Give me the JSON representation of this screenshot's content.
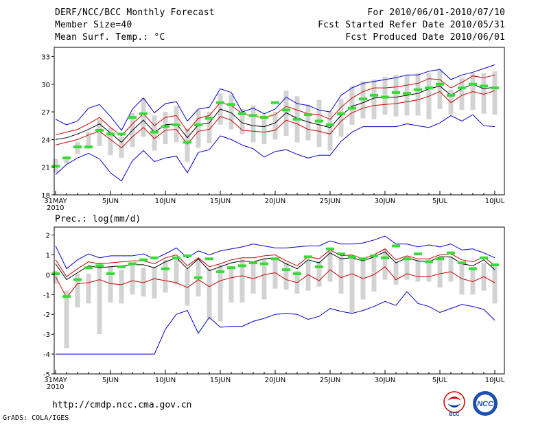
{
  "header": {
    "title": "DERF/NCC/BCC Monthly Forecast",
    "member_size": "Member Size=40",
    "variable": "Mean Surf. Temp.: °C",
    "forecast_period": "For 2010/06/01-2010/07/10",
    "start_date": "Fcst Started Refer Date 2010/05/31",
    "produced_date": "Fcst Produced Date 2010/06/01"
  },
  "footer": {
    "url": "http://cmdp.ncc.cma.gov.cn",
    "credit": "GrADS: COLA/IGES",
    "logo_bcc": "BCC",
    "logo_ncc": "NCC"
  },
  "colors": {
    "range": "#0000cc",
    "spread": "#cc0000",
    "mean": "#000000",
    "box": "#d3d3d3",
    "obs": "#33dd33"
  },
  "chart_data": [
    {
      "type": "line",
      "title": "Mean Surf. Temp.: °C",
      "ylim": [
        18,
        34
      ],
      "yticks": [
        18,
        21,
        24,
        27,
        30,
        33
      ],
      "xlim": [
        0,
        40
      ],
      "x_tick_positions": [
        0,
        5,
        10,
        15,
        20,
        25,
        30,
        35,
        40
      ],
      "x_tick_labels": [
        "31MAY",
        "5JUN",
        "10JUN",
        "15JUN",
        "20JUN",
        "25JUN",
        "30JUN",
        "5JUL",
        "10JUL"
      ],
      "x_sublabel": "2010",
      "series": [
        {
          "name": "max",
          "values": [
            26.2,
            25.6,
            26.0,
            27.4,
            27.8,
            26.5,
            25.0,
            27.3,
            28.5,
            26.9,
            27.9,
            28.1,
            26.0,
            27.3,
            27.5,
            29.5,
            29.1,
            27.0,
            27.4,
            26.8,
            27.3,
            28.6,
            27.9,
            27.7,
            27.2,
            27.0,
            28.8,
            29.6,
            30.1,
            30.3,
            30.5,
            30.7,
            31.0,
            31.0,
            31.4,
            31.6,
            30.5,
            31.0,
            31.3,
            31.7,
            32.1
          ]
        },
        {
          "name": "upper",
          "values": [
            24.5,
            24.8,
            25.1,
            25.7,
            26.4,
            25.3,
            24.4,
            25.7,
            26.8,
            25.5,
            26.4,
            26.6,
            24.9,
            26.3,
            26.6,
            28.0,
            27.7,
            26.8,
            26.5,
            26.4,
            26.7,
            27.6,
            27.2,
            26.8,
            26.7,
            26.2,
            27.5,
            28.5,
            29.2,
            29.6,
            29.6,
            29.7,
            29.9,
            30.1,
            30.6,
            30.5,
            29.6,
            30.2,
            30.9,
            30.7,
            31.0
          ]
        },
        {
          "name": "mean",
          "values": [
            24.0,
            24.2,
            24.6,
            25.1,
            25.7,
            24.7,
            23.7,
            25.0,
            26.1,
            24.8,
            25.6,
            25.7,
            24.2,
            25.6,
            25.8,
            27.3,
            26.9,
            25.8,
            25.5,
            25.4,
            25.8,
            26.9,
            26.3,
            25.9,
            25.6,
            25.3,
            26.6,
            27.6,
            28.0,
            28.5,
            28.6,
            28.6,
            28.8,
            29.0,
            29.5,
            29.8,
            28.8,
            29.5,
            30.0,
            29.5,
            29.7
          ]
        },
        {
          "name": "lower",
          "values": [
            23.4,
            23.7,
            24.0,
            24.5,
            24.9,
            24.0,
            23.1,
            24.3,
            25.3,
            24.1,
            25.0,
            25.1,
            23.5,
            24.9,
            25.1,
            26.5,
            26.1,
            25.0,
            24.9,
            24.8,
            25.0,
            26.1,
            25.7,
            25.1,
            24.9,
            24.6,
            26.0,
            26.9,
            27.4,
            27.7,
            27.8,
            27.9,
            28.1,
            28.3,
            28.7,
            29.2,
            28.0,
            28.8,
            29.2,
            28.9,
            29.3
          ]
        },
        {
          "name": "min",
          "values": [
            20.2,
            21.3,
            22.0,
            22.5,
            21.9,
            20.4,
            19.5,
            21.7,
            22.8,
            21.6,
            22.0,
            22.2,
            20.4,
            22.6,
            22.9,
            24.4,
            24.0,
            23.4,
            23.0,
            22.1,
            22.7,
            22.9,
            22.4,
            22.0,
            22.3,
            22.3,
            23.8,
            24.8,
            25.4,
            25.4,
            25.4,
            25.4,
            25.7,
            25.5,
            25.3,
            25.8,
            26.6,
            26.0,
            26.7,
            25.5,
            25.4
          ]
        },
        {
          "name": "box_low",
          "values": [
            20.4,
            21.4,
            22.4,
            23.0,
            23.3,
            22.3,
            22.0,
            23.2,
            24.3,
            22.8,
            23.5,
            23.7,
            21.6,
            23.1,
            23.6,
            25.6,
            25.1,
            24.6,
            23.7,
            23.5,
            24.0,
            24.4,
            23.7,
            23.9,
            23.2,
            22.8,
            24.3,
            25.6,
            26.3,
            26.2,
            26.7,
            26.5,
            26.6,
            26.6,
            26.2,
            27.3,
            26.7,
            27.2,
            27.2,
            26.8,
            26.7
          ]
        },
        {
          "name": "box_high",
          "values": [
            21.9,
            22.2,
            23.7,
            24.8,
            26.2,
            25.3,
            24.3,
            26.9,
            28.5,
            26.6,
            27.0,
            27.6,
            25.2,
            27.2,
            27.0,
            29.0,
            28.9,
            27.3,
            27.7,
            26.7,
            27.0,
            29.3,
            28.7,
            27.8,
            28.3,
            27.0,
            28.4,
            29.8,
            30.3,
            30.5,
            30.8,
            31.0,
            31.0,
            31.2,
            31.2,
            31.5,
            29.4,
            30.7,
            31.2,
            31.2,
            31.4
          ]
        },
        {
          "name": "observed",
          "values": [
            21.1,
            22.0,
            23.2,
            23.2,
            25.0,
            24.6,
            24.6,
            26.4,
            26.8,
            24.8,
            25.4,
            25.6,
            23.7,
            25.6,
            26.3,
            28.0,
            27.8,
            26.8,
            26.6,
            26.4,
            28.0,
            27.2,
            26.2,
            26.7,
            26.0,
            25.6,
            26.8,
            27.4,
            28.4,
            28.8,
            28.6,
            29.1,
            29.0,
            29.4,
            29.6,
            30.0,
            28.8,
            29.6,
            30.0,
            29.8,
            29.6
          ]
        }
      ]
    },
    {
      "type": "line",
      "title": "Prec.: log(mm/d)",
      "ylim": [
        -5,
        2.4
      ],
      "yticks": [
        -5,
        -4,
        -3,
        -2,
        -1,
        0,
        1,
        2
      ],
      "xlim": [
        0,
        40
      ],
      "x_tick_positions": [
        0,
        5,
        10,
        15,
        20,
        25,
        30,
        35,
        40
      ],
      "x_tick_labels": [
        "31MAY",
        "5JUN",
        "10JUN",
        "15JUN",
        "20JUN",
        "25JUN",
        "30JUN",
        "5JUL",
        "10JUL"
      ],
      "x_sublabel": "2010",
      "series": [
        {
          "name": "max",
          "values": [
            1.45,
            0.3,
            0.75,
            1.05,
            0.85,
            0.95,
            0.95,
            0.95,
            1.05,
            0.8,
            1.05,
            1.35,
            0.85,
            1.2,
            1.0,
            1.2,
            1.3,
            1.4,
            1.55,
            1.45,
            1.35,
            1.35,
            1.4,
            1.45,
            1.45,
            1.7,
            1.55,
            1.55,
            1.6,
            1.75,
            1.95,
            1.55,
            1.55,
            1.4,
            1.5,
            1.4,
            1.55,
            1.25,
            1.3,
            1.1,
            0.85
          ]
        },
        {
          "name": "upper",
          "values": [
            0.75,
            -0.1,
            0.3,
            0.65,
            0.55,
            0.6,
            0.65,
            0.7,
            0.7,
            0.55,
            0.85,
            1.0,
            0.45,
            0.85,
            0.4,
            0.55,
            0.75,
            0.85,
            0.85,
            0.95,
            1.0,
            0.7,
            0.45,
            0.9,
            0.8,
            1.25,
            0.95,
            1.0,
            0.8,
            1.0,
            1.3,
            0.75,
            0.95,
            0.8,
            0.8,
            1.0,
            1.05,
            0.75,
            0.65,
            0.9,
            0.45
          ]
        },
        {
          "name": "mean",
          "values": [
            0.55,
            -0.25,
            0.1,
            0.45,
            0.35,
            0.4,
            0.45,
            0.5,
            0.5,
            0.35,
            0.65,
            0.85,
            0.3,
            0.8,
            0.2,
            0.4,
            0.6,
            0.7,
            0.65,
            0.8,
            0.85,
            0.55,
            0.3,
            0.75,
            0.6,
            1.1,
            0.8,
            0.85,
            0.7,
            0.9,
            1.15,
            0.6,
            0.85,
            0.7,
            0.65,
            0.9,
            0.9,
            0.55,
            0.45,
            0.75,
            0.25
          ]
        },
        {
          "name": "lower",
          "values": [
            -0.1,
            -1.15,
            -0.45,
            -0.4,
            -0.25,
            -0.45,
            -0.5,
            -0.3,
            -0.4,
            -0.2,
            -0.3,
            -0.4,
            -0.65,
            -0.25,
            -0.6,
            -0.3,
            -0.15,
            -0.05,
            -0.2,
            0.0,
            0.1,
            -0.25,
            -0.4,
            0.0,
            -0.3,
            0.25,
            -0.15,
            0.05,
            -0.2,
            0.0,
            0.4,
            -0.25,
            0.05,
            -0.1,
            -0.1,
            0.05,
            0.15,
            -0.2,
            -0.35,
            -0.1,
            -0.4
          ]
        },
        {
          "name": "min",
          "values": [
            -4.0,
            -4.0,
            -4.0,
            -4.0,
            -4.0,
            -4.0,
            -4.0,
            -4.0,
            -4.0,
            -4.0,
            -2.75,
            -2.0,
            -1.8,
            -2.95,
            -2.15,
            -2.65,
            -2.6,
            -2.6,
            -2.35,
            -2.2,
            -2.0,
            -1.95,
            -2.0,
            -2.25,
            -2.1,
            -1.7,
            -1.85,
            -1.95,
            -1.8,
            -1.6,
            -1.35,
            -1.55,
            -0.85,
            -1.45,
            -1.6,
            -1.9,
            -1.7,
            -1.5,
            -1.6,
            -1.75,
            -2.3
          ]
        },
        {
          "name": "box_low",
          "values": [
            -0.45,
            -3.7,
            -1.65,
            -1.45,
            -3.0,
            -1.4,
            -1.45,
            -1.0,
            -1.1,
            -1.2,
            -0.9,
            -0.5,
            -1.55,
            -1.1,
            -2.25,
            -2.35,
            -1.4,
            -1.4,
            -0.95,
            -1.25,
            -0.7,
            -0.75,
            -0.95,
            -0.8,
            -0.6,
            -0.35,
            -0.95,
            -1.95,
            -1.25,
            -0.85,
            -0.25,
            -0.5,
            -0.25,
            -0.35,
            -0.35,
            -0.65,
            -0.35,
            -1.0,
            -1.0,
            -0.8,
            -1.45
          ]
        },
        {
          "name": "box_high",
          "values": [
            0.2,
            -0.8,
            0.05,
            0.05,
            0.6,
            0.4,
            0.25,
            0.55,
            0.35,
            0.4,
            0.75,
            0.9,
            0.3,
            0.8,
            0.3,
            0.5,
            0.45,
            0.8,
            0.7,
            0.8,
            0.8,
            0.6,
            0.2,
            0.7,
            0.7,
            1.2,
            0.9,
            0.9,
            0.7,
            0.95,
            1.3,
            0.6,
            0.95,
            0.75,
            0.8,
            0.8,
            0.9,
            0.55,
            0.4,
            0.6,
            0.5
          ]
        },
        {
          "name": "observed",
          "values": [
            0.05,
            -1.1,
            -0.25,
            0.35,
            0.45,
            0.05,
            0.4,
            0.55,
            0.75,
            0.85,
            0.3,
            0.85,
            0.95,
            -0.15,
            0.8,
            0.15,
            0.35,
            0.45,
            0.6,
            0.55,
            0.8,
            0.25,
            0.05,
            0.9,
            0.4,
            1.3,
            1.05,
            0.9,
            0.8,
            0.95,
            0.85,
            1.45,
            0.8,
            1.05,
            0.65,
            0.8,
            1.1,
            0.6,
            0.3,
            0.85,
            0.5
          ]
        }
      ]
    }
  ]
}
